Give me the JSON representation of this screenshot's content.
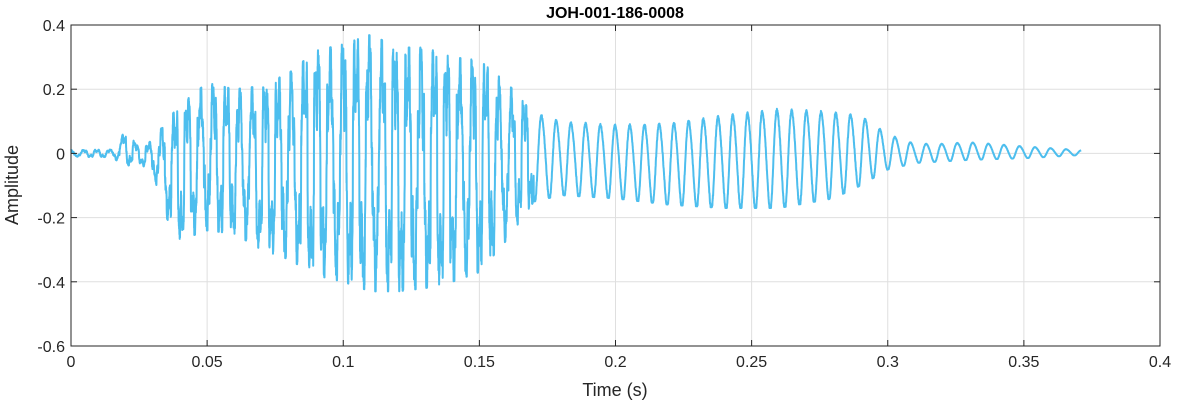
{
  "chart_data": {
    "type": "line",
    "title": "JOH-001-186-0008",
    "xlabel": "Time (s)",
    "ylabel": "Amplitude",
    "xlim": [
      0,
      0.4
    ],
    "ylim": [
      -0.6,
      0.4
    ],
    "grid": true,
    "x_ticks": [
      "0",
      "0.05",
      "0.1",
      "0.15",
      "0.2",
      "0.25",
      "0.3",
      "0.35",
      "0.4"
    ],
    "y_ticks": [
      "-0.6",
      "-0.4",
      "-0.2",
      "0",
      "0.2",
      "0.4"
    ],
    "duration_s": 0.371,
    "line_color": "#4dbeee",
    "envelope": {
      "time": [
        0,
        0.015,
        0.02,
        0.025,
        0.03,
        0.035,
        0.04,
        0.05,
        0.06,
        0.07,
        0.08,
        0.09,
        0.1,
        0.11,
        0.12,
        0.13,
        0.14,
        0.15,
        0.16,
        0.17,
        0.18,
        0.2,
        0.22,
        0.24,
        0.26,
        0.28,
        0.29,
        0.3,
        0.31,
        0.32,
        0.33,
        0.35,
        0.371
      ],
      "upper": [
        0.01,
        0.012,
        0.07,
        0.02,
        0.04,
        0.1,
        0.15,
        0.22,
        0.2,
        0.21,
        0.25,
        0.32,
        0.34,
        0.37,
        0.33,
        0.33,
        0.3,
        0.29,
        0.22,
        0.13,
        0.1,
        0.09,
        0.095,
        0.12,
        0.14,
        0.13,
        0.12,
        0.06,
        0.03,
        0.03,
        0.035,
        0.022,
        0.01
      ],
      "lower": [
        -0.01,
        -0.012,
        -0.04,
        -0.03,
        -0.06,
        -0.2,
        -0.27,
        -0.24,
        -0.25,
        -0.3,
        -0.33,
        -0.38,
        -0.4,
        -0.43,
        -0.43,
        -0.42,
        -0.4,
        -0.37,
        -0.27,
        -0.15,
        -0.13,
        -0.14,
        -0.16,
        -0.17,
        -0.17,
        -0.14,
        -0.1,
        -0.05,
        -0.03,
        -0.025,
        -0.02,
        -0.015,
        -0.005
      ]
    }
  }
}
